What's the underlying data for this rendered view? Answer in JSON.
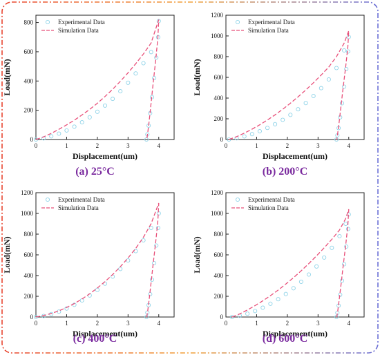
{
  "frame": {
    "color_left": "#e8432e",
    "color_right": "#6b6fd6",
    "color_top_mid": "#f2a23a"
  },
  "chart_data": [
    {
      "type": "line",
      "caption": "(a) 25°C",
      "xlabel": "Displacement(um)",
      "ylabel": "Load(mN)",
      "xlim": [
        0,
        4.5
      ],
      "ylim": [
        0,
        850
      ],
      "xticks": [
        "0",
        "1",
        "2",
        "3",
        "4"
      ],
      "yticks": [
        "0",
        "200",
        "400",
        "600",
        "800"
      ],
      "ytick_values": [
        0,
        200,
        400,
        600,
        800
      ],
      "legend_position": "top-left",
      "series": [
        {
          "name": "Experimental Data",
          "style": "markers",
          "color": "#8fd3e8",
          "x": [
            0.0,
            0.25,
            0.5,
            0.75,
            1.0,
            1.25,
            1.5,
            1.75,
            2.0,
            2.25,
            2.5,
            2.75,
            3.0,
            3.25,
            3.5,
            3.75,
            4.0,
            3.98,
            3.92,
            3.85,
            3.78,
            3.72,
            3.67,
            3.63,
            3.6
          ],
          "y": [
            0,
            8,
            22,
            40,
            62,
            88,
            118,
            152,
            190,
            232,
            278,
            330,
            388,
            452,
            522,
            598,
            810,
            700,
            560,
            420,
            290,
            180,
            95,
            35,
            0
          ]
        },
        {
          "name": "Simulation Data",
          "style": "dashed",
          "color": "#e8507a",
          "x": [
            0.0,
            0.25,
            0.5,
            0.75,
            1.0,
            1.25,
            1.5,
            1.75,
            2.0,
            2.25,
            2.5,
            2.75,
            3.0,
            3.25,
            3.5,
            3.75,
            4.0,
            3.97,
            3.9,
            3.82,
            3.75,
            3.69,
            3.64,
            3.61
          ],
          "y": [
            0,
            18,
            42,
            70,
            100,
            132,
            168,
            206,
            248,
            294,
            344,
            398,
            456,
            518,
            585,
            660,
            820,
            690,
            540,
            390,
            250,
            130,
            45,
            0
          ]
        }
      ]
    },
    {
      "type": "line",
      "caption": "(b) 200°C",
      "xlabel": "Displacement(um)",
      "ylabel": "Load(mN)",
      "xlim": [
        0,
        4.5
      ],
      "ylim": [
        0,
        1200
      ],
      "xticks": [
        "0",
        "1",
        "2",
        "3",
        "4"
      ],
      "yticks": [
        "0",
        "200",
        "400",
        "600",
        "800",
        "1000",
        "1200"
      ],
      "ytick_values": [
        0,
        200,
        400,
        600,
        800,
        1000,
        1200
      ],
      "legend_position": "top-left",
      "series": [
        {
          "name": "Experimental Data",
          "style": "markers",
          "color": "#8fd3e8",
          "x": [
            0.1,
            0.35,
            0.6,
            0.85,
            1.1,
            1.35,
            1.6,
            1.85,
            2.1,
            2.35,
            2.6,
            2.85,
            3.1,
            3.35,
            3.6,
            3.85,
            4.0,
            3.98,
            3.92,
            3.85,
            3.78,
            3.72,
            3.67,
            3.63,
            3.6
          ],
          "y": [
            0,
            12,
            30,
            52,
            80,
            112,
            148,
            190,
            238,
            292,
            352,
            420,
            496,
            580,
            690,
            860,
            990,
            850,
            680,
            510,
            350,
            215,
            110,
            40,
            0
          ]
        },
        {
          "name": "Simulation Data",
          "style": "dashed",
          "color": "#e8507a",
          "x": [
            0.1,
            0.35,
            0.6,
            0.85,
            1.1,
            1.35,
            1.6,
            1.85,
            2.1,
            2.35,
            2.6,
            2.85,
            3.1,
            3.35,
            3.6,
            3.85,
            4.0,
            3.97,
            3.9,
            3.82,
            3.75,
            3.69,
            3.64,
            3.61
          ],
          "y": [
            0,
            28,
            62,
            100,
            142,
            188,
            238,
            292,
            350,
            412,
            478,
            548,
            622,
            700,
            800,
            930,
            1050,
            890,
            700,
            510,
            330,
            175,
            60,
            0
          ]
        }
      ]
    },
    {
      "type": "line",
      "caption": "(c) 400°C",
      "xlabel": "Displacement(um)",
      "ylabel": "Load(mN)",
      "xlim": [
        0,
        4.5
      ],
      "ylim": [
        0,
        1200
      ],
      "xticks": [
        "0",
        "1",
        "2",
        "3",
        "4"
      ],
      "yticks": [
        "0",
        "200",
        "400",
        "600",
        "800",
        "1000",
        "1200"
      ],
      "ytick_values": [
        0,
        200,
        400,
        600,
        800,
        1000,
        1200
      ],
      "legend_position": "top-left",
      "series": [
        {
          "name": "Experimental Data",
          "style": "markers",
          "color": "#8fd3e8",
          "x": [
            0.0,
            0.25,
            0.5,
            0.75,
            1.0,
            1.25,
            1.5,
            1.75,
            2.0,
            2.25,
            2.5,
            2.75,
            3.0,
            3.25,
            3.5,
            3.75,
            4.0,
            3.98,
            3.92,
            3.85,
            3.78,
            3.72,
            3.67,
            3.63,
            3.6
          ],
          "y": [
            0,
            10,
            28,
            52,
            82,
            118,
            160,
            208,
            262,
            322,
            390,
            464,
            546,
            636,
            740,
            860,
            1000,
            860,
            690,
            520,
            360,
            220,
            115,
            42,
            0
          ]
        },
        {
          "name": "Simulation Data",
          "style": "dashed",
          "color": "#e8507a",
          "x": [
            0.0,
            0.25,
            0.5,
            0.75,
            1.0,
            1.25,
            1.5,
            1.75,
            2.0,
            2.25,
            2.5,
            2.75,
            3.0,
            3.25,
            3.5,
            3.75,
            4.0,
            3.97,
            3.9,
            3.82,
            3.75,
            3.69,
            3.64,
            3.61
          ],
          "y": [
            0,
            14,
            34,
            60,
            92,
            130,
            174,
            224,
            280,
            342,
            410,
            486,
            570,
            662,
            770,
            900,
            1100,
            920,
            720,
            520,
            335,
            175,
            58,
            0
          ]
        }
      ]
    },
    {
      "type": "line",
      "caption": "(d) 600°C",
      "xlabel": "Displacement(um)",
      "ylabel": "Load(mN)",
      "xlim": [
        0,
        4.5
      ],
      "ylim": [
        0,
        1200
      ],
      "xticks": [
        "0",
        "1",
        "2",
        "3",
        "4"
      ],
      "yticks": [
        "0",
        "200",
        "400",
        "600",
        "800",
        "1000",
        "1200"
      ],
      "ytick_values": [
        0,
        200,
        400,
        600,
        800,
        1000,
        1200
      ],
      "legend_position": "top-left",
      "series": [
        {
          "name": "Experimental Data",
          "style": "markers",
          "color": "#8fd3e8",
          "x": [
            0.2,
            0.45,
            0.7,
            0.95,
            1.2,
            1.45,
            1.7,
            1.95,
            2.2,
            2.45,
            2.7,
            2.95,
            3.2,
            3.45,
            3.7,
            3.9,
            4.0,
            3.98,
            3.92,
            3.85,
            3.78,
            3.72,
            3.67,
            3.63,
            3.6
          ],
          "y": [
            0,
            12,
            32,
            58,
            90,
            128,
            172,
            222,
            278,
            340,
            410,
            488,
            574,
            668,
            780,
            900,
            990,
            850,
            680,
            510,
            350,
            215,
            110,
            40,
            0
          ]
        },
        {
          "name": "Simulation Data",
          "style": "dashed",
          "color": "#e8507a",
          "x": [
            0.2,
            0.45,
            0.7,
            0.95,
            1.2,
            1.45,
            1.7,
            1.95,
            2.2,
            2.45,
            2.7,
            2.95,
            3.2,
            3.45,
            3.7,
            3.9,
            4.0,
            3.97,
            3.9,
            3.82,
            3.75,
            3.69,
            3.64,
            3.61
          ],
          "y": [
            0,
            30,
            68,
            110,
            156,
            206,
            260,
            318,
            380,
            446,
            516,
            590,
            668,
            750,
            840,
            950,
            1040,
            880,
            690,
            500,
            320,
            170,
            55,
            0
          ]
        }
      ]
    }
  ]
}
